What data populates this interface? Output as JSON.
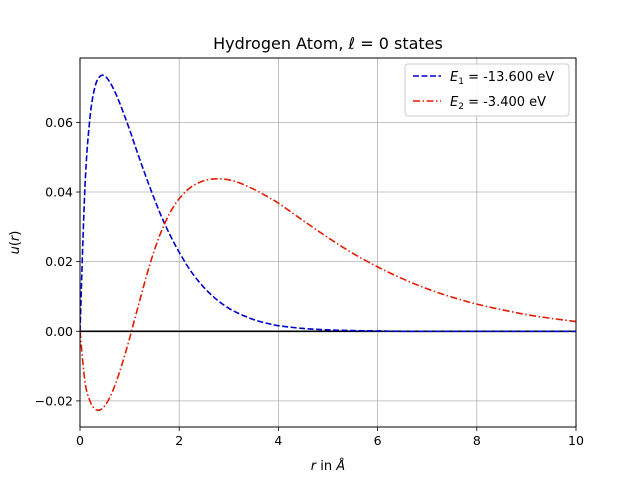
{
  "chart_data": {
    "type": "line",
    "title_prefix": "Hydrogen Atom, ",
    "title_ell": "ℓ",
    "title_suffix": " = 0 states",
    "xlabel_var": "r",
    "xlabel_mid": " in ",
    "xlabel_unit": "Å",
    "ylabel_fn": "u",
    "ylabel_arg": "r",
    "xlim": [
      0,
      10
    ],
    "ylim": [
      -0.0275,
      0.0785
    ],
    "xticks": [
      0,
      2,
      4,
      6,
      8,
      10
    ],
    "xtick_labels": [
      "0",
      "2",
      "4",
      "6",
      "8",
      "10"
    ],
    "yticks": [
      -0.02,
      0.0,
      0.02,
      0.04,
      0.06
    ],
    "ytick_labels": [
      "−0.02",
      "0.00",
      "0.02",
      "0.04",
      "0.06"
    ],
    "grid": true,
    "legend_placement": "top-right",
    "zero_line": {
      "y": 0,
      "color": "#000000"
    },
    "x": [
      0,
      0.1,
      0.2,
      0.3,
      0.4,
      0.5,
      0.6,
      0.7,
      0.8,
      0.9,
      1.0,
      1.1,
      1.2,
      1.3,
      1.4,
      1.5,
      1.6,
      1.7,
      1.8,
      1.9,
      2.0,
      2.2,
      2.4,
      2.6,
      2.8,
      3.0,
      3.2,
      3.4,
      3.6,
      3.8,
      4.0,
      4.5,
      5.0,
      5.5,
      6.0,
      6.5,
      7.0,
      7.5,
      8.0,
      8.5,
      9.0,
      9.5,
      10.0
    ],
    "series": [
      {
        "name_var": "E",
        "name_sub": "1",
        "name_rest": " = -13.600 eV",
        "color": "#0000cc",
        "dash": "dashed",
        "values": [
          0.0,
          0.0415,
          0.0612,
          0.0701,
          0.0732,
          0.0733,
          0.0716,
          0.0689,
          0.0656,
          0.0618,
          0.0579,
          0.0537,
          0.0496,
          0.0456,
          0.0417,
          0.038,
          0.0344,
          0.0311,
          0.0281,
          0.0253,
          0.0227,
          0.018,
          0.0142,
          0.0111,
          0.0086,
          0.0066,
          0.0051,
          0.0039,
          0.0029,
          0.0022,
          0.0016,
          0.0008,
          0.0004,
          0.0002,
          0.0001,
          0.0,
          0.0,
          0.0,
          0.0,
          0.0,
          0.0,
          0.0,
          0.0
        ]
      },
      {
        "name_var": "E",
        "name_sub": "2",
        "name_rest": " = -3.400 eV",
        "color": "#e31a00",
        "dash": "dashdot",
        "values": [
          0.0,
          -0.0145,
          -0.02,
          -0.0223,
          -0.0226,
          -0.0214,
          -0.019,
          -0.0157,
          -0.0116,
          -0.007,
          -0.002,
          0.0033,
          0.0086,
          0.0138,
          0.0188,
          0.0233,
          0.0273,
          0.0307,
          0.0337,
          0.0361,
          0.0381,
          0.041,
          0.0427,
          0.0436,
          0.0438,
          0.0435,
          0.0427,
          0.0415,
          0.0401,
          0.0385,
          0.0368,
          0.0318,
          0.0269,
          0.0224,
          0.0185,
          0.0151,
          0.0122,
          0.0098,
          0.0078,
          0.0062,
          0.0048,
          0.0037,
          0.0028
        ]
      }
    ]
  }
}
